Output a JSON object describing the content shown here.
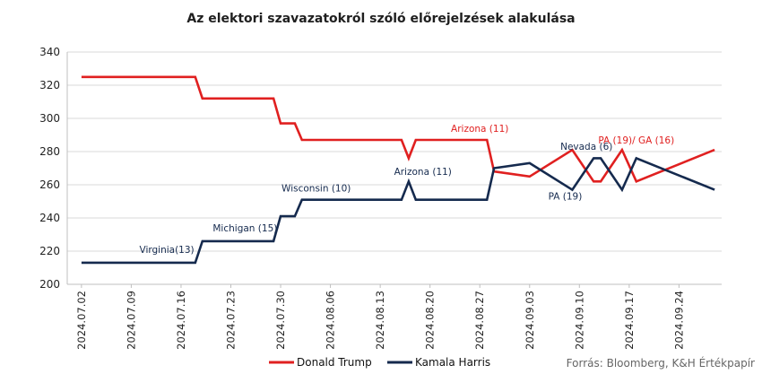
{
  "chart_data": {
    "type": "line",
    "title": "Az elektori szavazatokról szóló előrejelzések alakulása",
    "xlabel": "",
    "ylabel": "",
    "ylim": [
      200,
      340
    ],
    "yticks": [
      200,
      220,
      240,
      260,
      280,
      300,
      320,
      340
    ],
    "xlim": [
      "2024-06-30",
      "2024-09-30"
    ],
    "xticks": [
      "2024.07.02",
      "2024.07.09",
      "2024.07.16",
      "2024.07.23",
      "2024.07.30",
      "2024.08.06",
      "2024.08.13",
      "2024.08.20",
      "2024.08.27",
      "2024.09.03",
      "2024.09.10",
      "2024.09.17",
      "2024.09.24"
    ],
    "legend_position": "bottom",
    "source": "Forrás: Bloomberg, K&H Értékpapír",
    "series": [
      {
        "name": "Donald Trump",
        "color": "#e02020",
        "points": [
          [
            "2024-07-02",
            325
          ],
          [
            "2024-07-18",
            325
          ],
          [
            "2024-07-19",
            312
          ],
          [
            "2024-07-29",
            312
          ],
          [
            "2024-07-30",
            297
          ],
          [
            "2024-08-01",
            297
          ],
          [
            "2024-08-02",
            287
          ],
          [
            "2024-08-16",
            287
          ],
          [
            "2024-08-17",
            276
          ],
          [
            "2024-08-18",
            287
          ],
          [
            "2024-08-28",
            287
          ],
          [
            "2024-08-29",
            268
          ],
          [
            "2024-09-03",
            265
          ],
          [
            "2024-09-09",
            281
          ],
          [
            "2024-09-12",
            262
          ],
          [
            "2024-09-13",
            262
          ],
          [
            "2024-09-16",
            281
          ],
          [
            "2024-09-18",
            262
          ],
          [
            "2024-09-29",
            281
          ]
        ]
      },
      {
        "name": "Kamala Harris",
        "color": "#152a4e",
        "points": [
          [
            "2024-07-02",
            213
          ],
          [
            "2024-07-18",
            213
          ],
          [
            "2024-07-19",
            226
          ],
          [
            "2024-07-29",
            226
          ],
          [
            "2024-07-30",
            241
          ],
          [
            "2024-08-01",
            241
          ],
          [
            "2024-08-02",
            251
          ],
          [
            "2024-08-16",
            251
          ],
          [
            "2024-08-17",
            262
          ],
          [
            "2024-08-18",
            251
          ],
          [
            "2024-08-28",
            251
          ],
          [
            "2024-08-29",
            270
          ],
          [
            "2024-09-03",
            273
          ],
          [
            "2024-09-09",
            257
          ],
          [
            "2024-09-12",
            276
          ],
          [
            "2024-09-13",
            276
          ],
          [
            "2024-09-16",
            257
          ],
          [
            "2024-09-18",
            276
          ],
          [
            "2024-09-29",
            257
          ]
        ]
      }
    ],
    "annotations": [
      {
        "text": "Virginia(13)",
        "x": "2024-07-14",
        "y": 219,
        "color": "#152a4e"
      },
      {
        "text": "Michigan (15)",
        "x": "2024-07-25",
        "y": 232,
        "color": "#152a4e"
      },
      {
        "text": "Wisconsin (10)",
        "x": "2024-08-04",
        "y": 256,
        "color": "#152a4e"
      },
      {
        "text": "Arizona (11)",
        "x": "2024-08-19",
        "y": 266,
        "color": "#152a4e"
      },
      {
        "text": "Arizona (11)",
        "x": "2024-08-27",
        "y": 292,
        "color": "#e02020"
      },
      {
        "text": "Nevada (6)",
        "x": "2024-09-11",
        "y": 281,
        "color": "#152a4e"
      },
      {
        "text": "PA (19)",
        "x": "2024-09-08",
        "y": 251,
        "color": "#152a4e"
      },
      {
        "text": "PA (19)/ GA (16)",
        "x": "2024-09-18",
        "y": 285,
        "color": "#e02020"
      }
    ]
  }
}
